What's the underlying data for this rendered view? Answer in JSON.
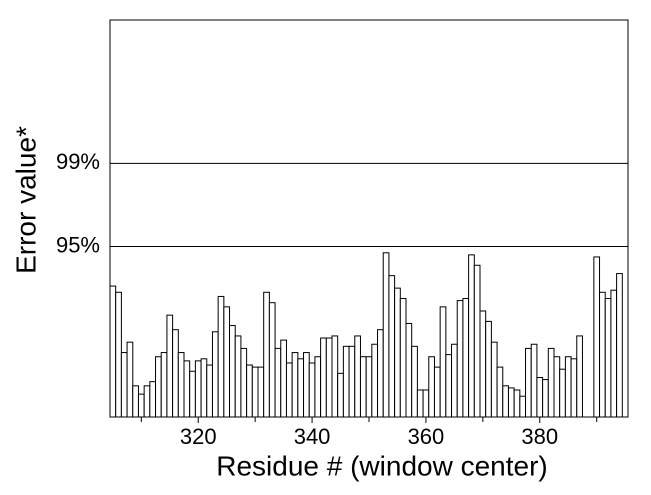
{
  "chart_data": {
    "type": "bar",
    "y_label": "Error value*",
    "x_label": "Residue # (window center)",
    "x": [
      305,
      306,
      307,
      308,
      309,
      310,
      311,
      312,
      313,
      314,
      315,
      316,
      317,
      318,
      319,
      320,
      321,
      322,
      323,
      324,
      325,
      326,
      327,
      328,
      329,
      330,
      331,
      332,
      333,
      334,
      335,
      336,
      337,
      338,
      339,
      340,
      341,
      342,
      343,
      344,
      345,
      346,
      347,
      348,
      349,
      350,
      351,
      352,
      353,
      354,
      355,
      356,
      357,
      358,
      359,
      360,
      361,
      362,
      363,
      364,
      365,
      366,
      367,
      368,
      369,
      370,
      371,
      372,
      373,
      374,
      375,
      376,
      377,
      378,
      379,
      380,
      381,
      382,
      383,
      384,
      385,
      386,
      387,
      388,
      389,
      390,
      391,
      392,
      393,
      394
    ],
    "values": [
      93.1,
      92.8,
      89.9,
      90.4,
      88.3,
      87.9,
      88.3,
      88.5,
      89.7,
      89.9,
      91.7,
      91.0,
      89.9,
      89.5,
      89.0,
      89.5,
      89.6,
      89.3,
      90.9,
      92.6,
      92.1,
      91.2,
      90.7,
      90.1,
      89.3,
      89.2,
      89.2,
      92.8,
      92.3,
      90.1,
      90.5,
      89.4,
      89.9,
      89.6,
      89.9,
      89.4,
      89.7,
      90.6,
      90.6,
      90.7,
      88.9,
      90.2,
      90.2,
      90.7,
      89.7,
      89.7,
      90.3,
      91.0,
      94.7,
      93.6,
      93.0,
      92.5,
      91.3,
      90.2,
      88.1,
      88.1,
      89.7,
      89.2,
      92.1,
      89.8,
      90.3,
      92.4,
      92.5,
      94.6,
      94.1,
      91.9,
      91.4,
      90.4,
      89.2,
      88.3,
      88.2,
      88.1,
      87.8,
      90.1,
      90.3,
      88.7,
      88.6,
      90.1,
      89.7,
      89.1,
      89.7,
      89.6,
      90.7,
      null,
      null,
      94.5,
      92.8,
      92.5,
      92.9,
      93.7
    ],
    "color": "#ffffff",
    "xlim": [
      304.5,
      395.5
    ],
    "xticks": [
      320,
      340,
      360,
      380
    ],
    "xminor_ticks": [
      310,
      330,
      350,
      370,
      390
    ],
    "ylim": [
      86.8,
      105.9
    ],
    "yticks": [
      {
        "value": 95,
        "label": "95%"
      },
      {
        "value": 99,
        "label": "99%"
      }
    ],
    "grid": true
  }
}
